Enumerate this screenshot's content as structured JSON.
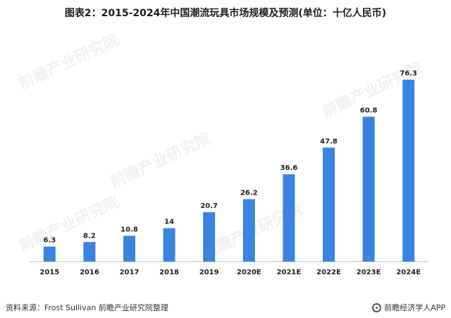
{
  "header": {
    "title": "图表2：2015-2024年中国潮流玩具市场规模及预测(单位：十亿人民币)"
  },
  "footer": {
    "source": "资料来源：Frost Sullivan 前瞻产业研究院整理",
    "brand": "前瞻经济学人APP"
  },
  "watermark": {
    "text": "前瞻产业研究院"
  },
  "colors": {
    "bar": "#3a83e0",
    "axis": "#bbbbbb"
  },
  "chart_data": {
    "type": "bar",
    "title": "图表2：2015-2024年中国潮流玩具市场规模及预测(单位：十亿人民币)",
    "categories": [
      "2015",
      "2016",
      "2017",
      "2018",
      "2019",
      "2020E",
      "2021E",
      "2022E",
      "2023E",
      "2024E"
    ],
    "values": [
      6.3,
      8.2,
      10.8,
      14,
      20.7,
      26.2,
      36.6,
      47.8,
      60.8,
      76.3
    ],
    "labels": [
      "6.3",
      "8.2",
      "10.8",
      "14",
      "20.7",
      "26.2",
      "36.6",
      "47.8",
      "60.8",
      "76.3"
    ],
    "ylim": [
      0,
      76.3
    ],
    "grid": false,
    "legend": "none"
  }
}
